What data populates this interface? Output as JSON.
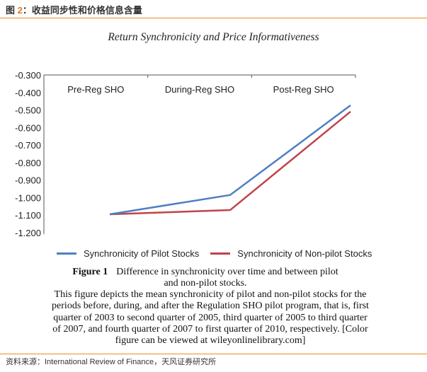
{
  "header": {
    "prefix": "图 ",
    "number": "2",
    "title": "：收益同步性和价格信息含量"
  },
  "chart_data": {
    "type": "line",
    "title": "Return Synchronicity and Price Informativeness",
    "categories": [
      "Pre-Reg SHO",
      "During-Reg SHO",
      "Post-Reg SHO"
    ],
    "ylim": [
      -1.2,
      -0.3
    ],
    "yticks": [
      "-0.300",
      "-0.400",
      "-0.500",
      "-0.600",
      "-0.700",
      "-0.800",
      "-0.900",
      "-1.000",
      "-1.100",
      "-1.200"
    ],
    "ytick_values": [
      -0.3,
      -0.4,
      -0.5,
      -0.6,
      -0.7,
      -0.8,
      -0.9,
      -1.0,
      -1.1,
      -1.2
    ],
    "series": [
      {
        "name": "Synchronicity of Pilot Stocks",
        "color": "#4f7fc0",
        "values": [
          -1.095,
          -0.985,
          -0.473
        ]
      },
      {
        "name": "Synchronicity of Non-pilot Stocks",
        "color": "#c0434a",
        "values": [
          -1.095,
          -1.071,
          -0.509
        ]
      }
    ],
    "legend": "bottom",
    "grid": false
  },
  "caption": {
    "label": "Figure 1",
    "title_line1": "Difference in synchronicity over time and between pilot",
    "title_line2": "and non-pilot stocks.",
    "lines": [
      "This figure depicts the mean synchronicity of pilot and non-pilot stocks for the",
      "periods before, during, and after the Regulation SHO pilot program, that is, first",
      "quarter of 2003 to second quarter of 2005, third quarter of 2005 to third quarter",
      "of 2007, and fourth quarter of 2007 to first quarter of 2010, respectively. [Color",
      "figure can be viewed at wileyonlinelibrary.com]"
    ]
  },
  "source": "资料来源：International Review of Finance，天风证券研究所"
}
